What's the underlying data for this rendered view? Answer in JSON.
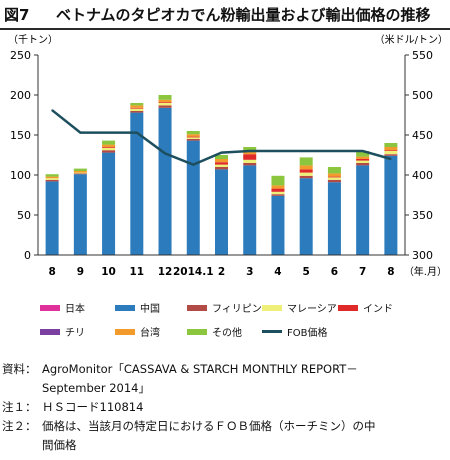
{
  "figure": {
    "number": "図7",
    "title": "ベトナムのタピオカでん粉輸出量および輸出価格の推移"
  },
  "chart_data": {
    "type": "bar",
    "stacked": true,
    "left_unit": "（千トン）",
    "right_unit": "（米ドル/トン）",
    "x_unit": "（年.月）",
    "categories": [
      "8",
      "9",
      "10",
      "11",
      "12",
      "2014.1",
      "2",
      "3",
      "4",
      "5",
      "6",
      "7",
      "8"
    ],
    "ylim": [
      0,
      250
    ],
    "yticks": [
      0,
      50,
      100,
      150,
      200,
      250
    ],
    "y2lim": [
      300,
      550
    ],
    "y2ticks": [
      300,
      350,
      400,
      450,
      500,
      550
    ],
    "grid": false,
    "series": [
      {
        "name": "日本",
        "color": "#e0309a",
        "values": [
          0,
          0,
          0,
          0,
          0,
          0,
          0,
          0,
          0,
          0,
          0,
          0,
          0
        ]
      },
      {
        "name": "中国",
        "color": "#2b7bbd",
        "values": [
          92,
          101,
          128,
          178,
          184,
          143,
          107,
          112,
          74,
          96,
          91,
          112,
          124
        ]
      },
      {
        "name": "フィリピン",
        "color": "#b24a45",
        "values": [
          2,
          1,
          3,
          2,
          3,
          2,
          3,
          3,
          2,
          3,
          3,
          3,
          2
        ]
      },
      {
        "name": "マレーシア",
        "color": "#eef07a",
        "values": [
          2,
          1,
          3,
          3,
          3,
          2,
          3,
          4,
          3,
          4,
          3,
          3,
          4
        ]
      },
      {
        "name": "インド",
        "color": "#e02a2a",
        "values": [
          0,
          0,
          1,
          1,
          1,
          1,
          3,
          7,
          4,
          4,
          1,
          2,
          1
        ]
      },
      {
        "name": "チリ",
        "color": "#7b3fa0",
        "values": [
          0,
          0,
          0,
          0,
          0,
          0,
          0,
          0,
          0,
          0,
          0,
          0,
          0
        ]
      },
      {
        "name": "台湾",
        "color": "#f39a2c",
        "values": [
          2,
          2,
          3,
          3,
          3,
          3,
          4,
          4,
          4,
          5,
          4,
          3,
          4
        ]
      },
      {
        "name": "その他",
        "color": "#8cc63f",
        "values": [
          3,
          3,
          5,
          3,
          6,
          4,
          5,
          5,
          12,
          10,
          8,
          7,
          5
        ]
      }
    ],
    "line_series": {
      "name": "FOB価格",
      "color": "#1d4f5e",
      "axis": "right",
      "values": [
        481,
        453,
        453,
        453,
        427,
        413,
        428,
        430,
        430,
        430,
        430,
        430,
        420
      ]
    }
  },
  "notes": [
    {
      "label": "資料：",
      "text": "AgroMonitor「CASSAVA & STARCH MONTHLY REPORT－"
    },
    {
      "label": "",
      "text": "September 2014」"
    },
    {
      "label": "注１：",
      "text": "ＨＳコード110814"
    },
    {
      "label": "注２：",
      "text": "価格は、当該月の特定日におけるＦＯＢ価格（ホーチミン）の中"
    },
    {
      "label": "",
      "text": "間価格"
    }
  ]
}
